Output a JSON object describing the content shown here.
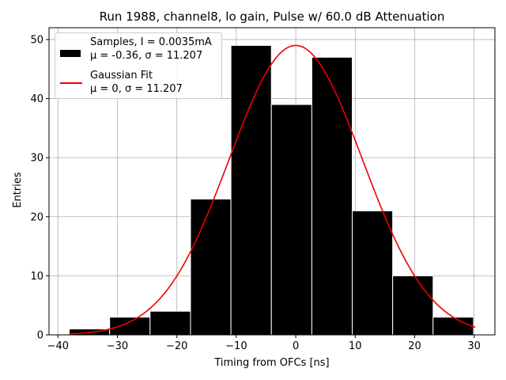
{
  "chart_data": {
    "type": "bar",
    "title": "Run 1988, channel8, lo gain, Pulse w/ 60.0 dB Attenuation",
    "xlabel": "Timing from OFCs [ns]",
    "ylabel": "Entries",
    "xlim": [
      -41.5,
      33.5
    ],
    "ylim": [
      0,
      52
    ],
    "xticks": [
      -40,
      -30,
      -20,
      -10,
      0,
      10,
      20,
      30
    ],
    "yticks": [
      0,
      10,
      20,
      30,
      40,
      50
    ],
    "grid": true,
    "histogram": {
      "name": "Samples",
      "bin_edges": [
        -38.1,
        -31.3,
        -24.5,
        -17.7,
        -10.9,
        -4.1,
        2.7,
        9.5,
        16.3,
        23.1,
        29.9
      ],
      "counts": [
        1,
        3,
        4,
        23,
        49,
        39,
        47,
        21,
        10,
        3
      ],
      "color": "#000000",
      "edgecolor": "#ffffff"
    },
    "fit": {
      "name": "Gaussian Fit",
      "mu": 0,
      "sigma": 11.207,
      "amplitude": 49,
      "x_range": [
        -38.1,
        30.2
      ],
      "color": "#ee0000"
    },
    "legend": {
      "placement": "upper-left",
      "entries": [
        {
          "line1": "Samples, I = 0.0035mA",
          "line2": "μ = -0.36, σ = 11.207"
        },
        {
          "line1": "Gaussian Fit",
          "line2": "μ = 0, σ = 11.207"
        }
      ]
    }
  }
}
